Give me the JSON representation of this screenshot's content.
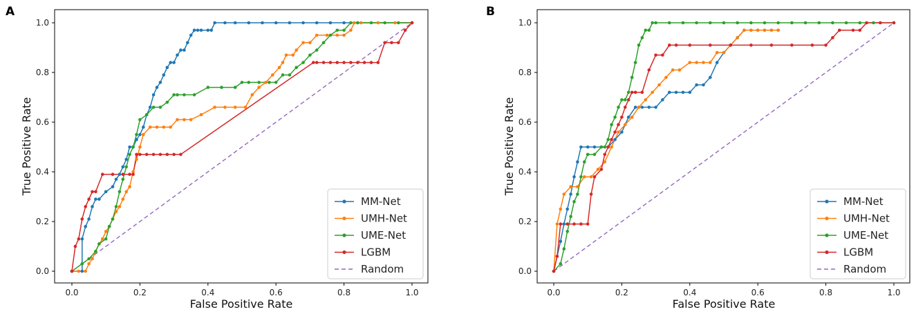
{
  "figure": {
    "panels": [
      "A",
      "B"
    ]
  },
  "chart_data": [
    {
      "type": "line",
      "panel_label": "A",
      "title": "",
      "xlabel": "False Positive Rate",
      "ylabel": "True Positive Rate",
      "xlim": [
        0,
        1
      ],
      "ylim": [
        0,
        1
      ],
      "xticks": [
        "0.0",
        "0.2",
        "0.4",
        "0.6",
        "0.8",
        "1.0"
      ],
      "yticks": [
        "0.0",
        "0.2",
        "0.4",
        "0.6",
        "0.8",
        "1.0"
      ],
      "grid": false,
      "legend_position": "bottom-right",
      "series": [
        {
          "name": "MM-Net",
          "color": "#1f77b4",
          "markers": true,
          "x": [
            0.0,
            0.03,
            0.03,
            0.04,
            0.05,
            0.06,
            0.07,
            0.08,
            0.1,
            0.12,
            0.13,
            0.14,
            0.15,
            0.16,
            0.17,
            0.18,
            0.19,
            0.2,
            0.21,
            0.22,
            0.23,
            0.24,
            0.25,
            0.26,
            0.27,
            0.28,
            0.29,
            0.3,
            0.31,
            0.32,
            0.33,
            0.34,
            0.35,
            0.36,
            0.37,
            0.38,
            0.4,
            0.41,
            0.42,
            0.45,
            0.48,
            0.52,
            0.56,
            0.6,
            0.64,
            0.68,
            0.72,
            0.76,
            0.8,
            0.84,
            1.0
          ],
          "y": [
            0.0,
            0.0,
            0.13,
            0.18,
            0.21,
            0.26,
            0.29,
            0.29,
            0.32,
            0.34,
            0.37,
            0.39,
            0.42,
            0.45,
            0.5,
            0.5,
            0.53,
            0.55,
            0.58,
            0.63,
            0.66,
            0.71,
            0.74,
            0.76,
            0.79,
            0.82,
            0.84,
            0.84,
            0.87,
            0.89,
            0.89,
            0.92,
            0.95,
            0.97,
            0.97,
            0.97,
            0.97,
            0.97,
            1.0,
            1.0,
            1.0,
            1.0,
            1.0,
            1.0,
            1.0,
            1.0,
            1.0,
            1.0,
            1.0,
            1.0,
            1.0
          ]
        },
        {
          "name": "UMH-Net",
          "color": "#ff7f0e",
          "markers": true,
          "x": [
            0.0,
            0.02,
            0.04,
            0.05,
            0.06,
            0.07,
            0.08,
            0.09,
            0.1,
            0.11,
            0.12,
            0.13,
            0.14,
            0.15,
            0.16,
            0.17,
            0.18,
            0.19,
            0.2,
            0.21,
            0.23,
            0.25,
            0.27,
            0.29,
            0.31,
            0.33,
            0.35,
            0.38,
            0.42,
            0.45,
            0.48,
            0.51,
            0.53,
            0.55,
            0.57,
            0.59,
            0.61,
            0.62,
            0.63,
            0.65,
            0.66,
            0.68,
            0.7,
            0.72,
            0.75,
            0.78,
            0.8,
            0.82,
            0.83,
            0.85,
            0.9,
            0.95,
            1.0
          ],
          "y": [
            0.0,
            0.0,
            0.0,
            0.03,
            0.05,
            0.08,
            0.11,
            0.13,
            0.16,
            0.18,
            0.21,
            0.24,
            0.26,
            0.29,
            0.32,
            0.34,
            0.4,
            0.45,
            0.5,
            0.55,
            0.58,
            0.58,
            0.58,
            0.58,
            0.61,
            0.61,
            0.61,
            0.63,
            0.66,
            0.66,
            0.66,
            0.66,
            0.71,
            0.74,
            0.76,
            0.79,
            0.82,
            0.84,
            0.87,
            0.87,
            0.89,
            0.92,
            0.92,
            0.95,
            0.95,
            0.95,
            0.95,
            0.97,
            1.0,
            1.0,
            1.0,
            1.0,
            1.0
          ]
        },
        {
          "name": "UME-Net",
          "color": "#2ca02c",
          "markers": true,
          "x": [
            0.0,
            0.03,
            0.05,
            0.07,
            0.08,
            0.1,
            0.11,
            0.12,
            0.13,
            0.14,
            0.15,
            0.16,
            0.17,
            0.18,
            0.19,
            0.2,
            0.22,
            0.24,
            0.26,
            0.28,
            0.3,
            0.31,
            0.33,
            0.36,
            0.4,
            0.44,
            0.48,
            0.5,
            0.52,
            0.55,
            0.58,
            0.6,
            0.62,
            0.64,
            0.66,
            0.68,
            0.7,
            0.72,
            0.74,
            0.76,
            0.78,
            0.8,
            0.82,
            0.84,
            0.88,
            0.92,
            0.96,
            1.0
          ],
          "y": [
            0.0,
            0.03,
            0.05,
            0.08,
            0.11,
            0.13,
            0.18,
            0.21,
            0.26,
            0.32,
            0.37,
            0.42,
            0.47,
            0.5,
            0.55,
            0.61,
            0.63,
            0.66,
            0.66,
            0.68,
            0.71,
            0.71,
            0.71,
            0.71,
            0.74,
            0.74,
            0.74,
            0.76,
            0.76,
            0.76,
            0.76,
            0.76,
            0.79,
            0.79,
            0.82,
            0.84,
            0.87,
            0.89,
            0.92,
            0.95,
            0.97,
            0.97,
            1.0,
            1.0,
            1.0,
            1.0,
            1.0,
            1.0
          ]
        },
        {
          "name": "LGBM",
          "color": "#d62728",
          "markers": true,
          "x": [
            0.0,
            0.01,
            0.02,
            0.03,
            0.04,
            0.05,
            0.06,
            0.07,
            0.09,
            0.12,
            0.15,
            0.17,
            0.18,
            0.19,
            0.2,
            0.22,
            0.24,
            0.26,
            0.28,
            0.3,
            0.32,
            0.71,
            0.72,
            0.74,
            0.76,
            0.78,
            0.8,
            0.82,
            0.84,
            0.86,
            0.88,
            0.9,
            0.92,
            0.94,
            0.96,
            0.98,
            1.0
          ],
          "y": [
            0.0,
            0.1,
            0.13,
            0.21,
            0.26,
            0.29,
            0.32,
            0.32,
            0.39,
            0.39,
            0.39,
            0.39,
            0.39,
            0.47,
            0.47,
            0.47,
            0.47,
            0.47,
            0.47,
            0.47,
            0.47,
            0.84,
            0.84,
            0.84,
            0.84,
            0.84,
            0.84,
            0.84,
            0.84,
            0.84,
            0.84,
            0.84,
            0.92,
            0.92,
            0.92,
            0.97,
            1.0
          ]
        },
        {
          "name": "Random",
          "color": "#9467bd",
          "dashed": true,
          "markers": false,
          "x": [
            0.0,
            1.0
          ],
          "y": [
            0.0,
            1.0
          ]
        }
      ]
    },
    {
      "type": "line",
      "panel_label": "B",
      "title": "",
      "xlabel": "False Positive Rate",
      "ylabel": "True Positive Rate",
      "xlim": [
        0,
        1
      ],
      "ylim": [
        0,
        1
      ],
      "xticks": [
        "0.0",
        "0.2",
        "0.4",
        "0.6",
        "0.8",
        "1.0"
      ],
      "yticks": [
        "0.0",
        "0.2",
        "0.4",
        "0.6",
        "0.8",
        "1.0"
      ],
      "grid": false,
      "legend_position": "bottom-right",
      "series": [
        {
          "name": "MM-Net",
          "color": "#1f77b4",
          "markers": true,
          "x": [
            0.0,
            0.01,
            0.02,
            0.03,
            0.04,
            0.05,
            0.06,
            0.07,
            0.08,
            0.1,
            0.12,
            0.14,
            0.16,
            0.18,
            0.2,
            0.22,
            0.24,
            0.26,
            0.28,
            0.3,
            0.32,
            0.34,
            0.36,
            0.38,
            0.4,
            0.42,
            0.44,
            0.46,
            0.48,
            0.5,
            0.52,
            0.54,
            0.56,
            0.58,
            0.6,
            0.62,
            0.64,
            0.66
          ],
          "y": [
            0.0,
            0.06,
            0.12,
            0.19,
            0.25,
            0.31,
            0.38,
            0.44,
            0.5,
            0.5,
            0.5,
            0.5,
            0.5,
            0.53,
            0.56,
            0.62,
            0.66,
            0.66,
            0.66,
            0.66,
            0.69,
            0.72,
            0.72,
            0.72,
            0.72,
            0.75,
            0.75,
            0.78,
            0.84,
            0.88,
            0.91,
            0.94,
            0.97,
            0.97,
            0.97,
            0.97,
            0.97,
            0.97
          ]
        },
        {
          "name": "UMH-Net",
          "color": "#ff7f0e",
          "markers": true,
          "x": [
            0.0,
            0.01,
            0.02,
            0.03,
            0.05,
            0.07,
            0.09,
            0.11,
            0.13,
            0.15,
            0.17,
            0.19,
            0.21,
            0.23,
            0.25,
            0.27,
            0.29,
            0.31,
            0.33,
            0.35,
            0.37,
            0.4,
            0.42,
            0.44,
            0.46,
            0.48,
            0.5,
            0.52,
            0.54,
            0.56,
            0.58,
            0.6,
            0.62,
            0.64,
            0.66
          ],
          "y": [
            0.0,
            0.19,
            0.25,
            0.31,
            0.34,
            0.34,
            0.38,
            0.38,
            0.41,
            0.44,
            0.5,
            0.56,
            0.59,
            0.62,
            0.66,
            0.69,
            0.72,
            0.75,
            0.78,
            0.81,
            0.81,
            0.84,
            0.84,
            0.84,
            0.84,
            0.88,
            0.88,
            0.91,
            0.94,
            0.97,
            0.97,
            0.97,
            0.97,
            0.97,
            0.97
          ]
        },
        {
          "name": "UME-Net",
          "color": "#2ca02c",
          "markers": true,
          "x": [
            0.0,
            0.02,
            0.03,
            0.04,
            0.05,
            0.06,
            0.07,
            0.08,
            0.09,
            0.1,
            0.12,
            0.14,
            0.15,
            0.16,
            0.17,
            0.18,
            0.19,
            0.2,
            0.21,
            0.22,
            0.23,
            0.24,
            0.25,
            0.26,
            0.27,
            0.28,
            0.29,
            0.3,
            0.34,
            0.38,
            0.42,
            0.46,
            0.5,
            0.54,
            0.58,
            0.62,
            0.66,
            0.7,
            0.74,
            0.78,
            0.82,
            0.86,
            0.9,
            0.94,
            1.0
          ],
          "y": [
            0.0,
            0.03,
            0.09,
            0.16,
            0.22,
            0.28,
            0.31,
            0.38,
            0.44,
            0.47,
            0.47,
            0.5,
            0.5,
            0.53,
            0.59,
            0.62,
            0.66,
            0.69,
            0.69,
            0.72,
            0.78,
            0.84,
            0.91,
            0.94,
            0.97,
            0.97,
            1.0,
            1.0,
            1.0,
            1.0,
            1.0,
            1.0,
            1.0,
            1.0,
            1.0,
            1.0,
            1.0,
            1.0,
            1.0,
            1.0,
            1.0,
            1.0,
            1.0,
            1.0,
            1.0
          ]
        },
        {
          "name": "LGBM",
          "color": "#d62728",
          "markers": true,
          "x": [
            0.0,
            0.01,
            0.02,
            0.04,
            0.06,
            0.08,
            0.1,
            0.11,
            0.12,
            0.14,
            0.15,
            0.16,
            0.17,
            0.18,
            0.19,
            0.2,
            0.21,
            0.22,
            0.23,
            0.24,
            0.26,
            0.28,
            0.3,
            0.32,
            0.34,
            0.36,
            0.4,
            0.46,
            0.52,
            0.58,
            0.64,
            0.7,
            0.76,
            0.8,
            0.82,
            0.84,
            0.88,
            0.9,
            0.92,
            0.96,
            1.0
          ],
          "y": [
            0.0,
            0.06,
            0.19,
            0.19,
            0.19,
            0.19,
            0.19,
            0.31,
            0.38,
            0.41,
            0.47,
            0.5,
            0.53,
            0.56,
            0.59,
            0.62,
            0.66,
            0.69,
            0.72,
            0.72,
            0.72,
            0.81,
            0.87,
            0.87,
            0.91,
            0.91,
            0.91,
            0.91,
            0.91,
            0.91,
            0.91,
            0.91,
            0.91,
            0.91,
            0.94,
            0.97,
            0.97,
            0.97,
            1.0,
            1.0,
            1.0
          ]
        },
        {
          "name": "Random",
          "color": "#9467bd",
          "dashed": true,
          "markers": false,
          "x": [
            0.0,
            1.0
          ],
          "y": [
            0.0,
            1.0
          ]
        }
      ]
    }
  ]
}
